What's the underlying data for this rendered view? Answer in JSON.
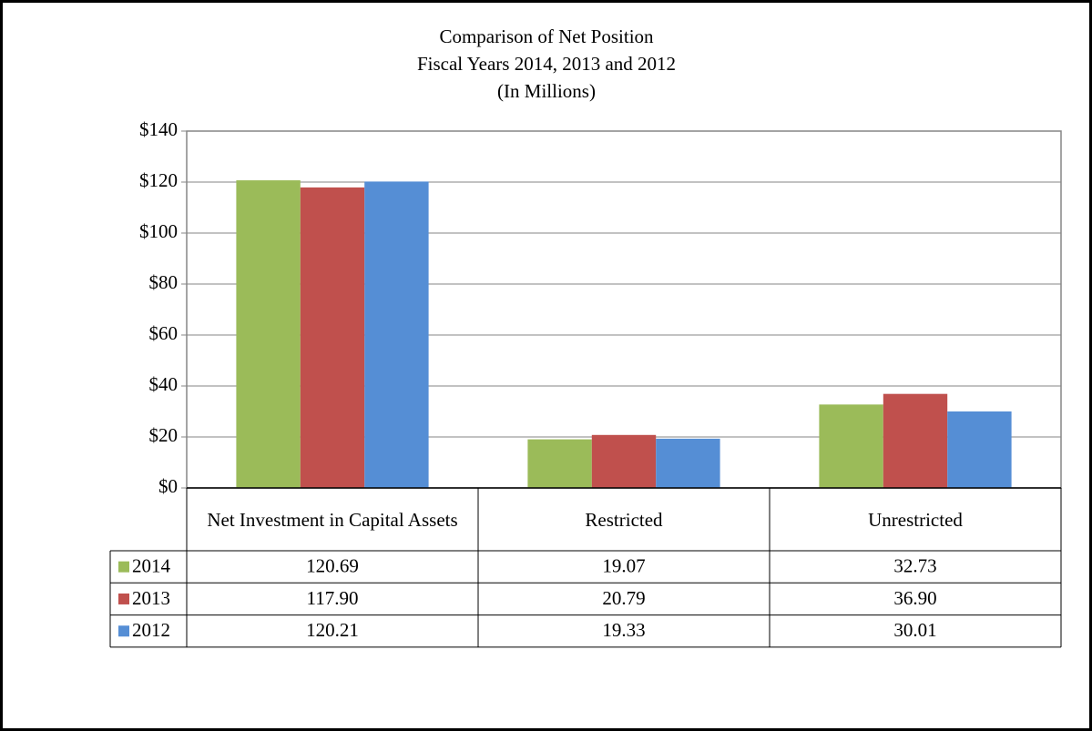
{
  "chart_data": {
    "type": "bar",
    "title": "Comparison of Net Position",
    "subtitle": "Fiscal Years 2014, 2013 and 2012",
    "units_note": "(In Millions)",
    "categories": [
      "Net Investment in Capital Assets",
      "Restricted",
      "Unrestricted"
    ],
    "series": [
      {
        "name": "2014",
        "color": "#9bbb59",
        "values": [
          120.69,
          19.07,
          32.73
        ],
        "value_labels": [
          "120.69",
          "19.07",
          "32.73"
        ]
      },
      {
        "name": "2013",
        "color": "#c0504d",
        "values": [
          117.9,
          20.79,
          36.9
        ],
        "value_labels": [
          "117.90",
          "20.79",
          "36.90"
        ]
      },
      {
        "name": "2012",
        "color": "#558ed5",
        "values": [
          120.21,
          19.33,
          30.01
        ],
        "value_labels": [
          "120.21",
          "19.33",
          "30.01"
        ]
      }
    ],
    "ylim": [
      0,
      140
    ],
    "yticks": [
      {
        "value": 0,
        "label": "$0"
      },
      {
        "value": 20,
        "label": "$20"
      },
      {
        "value": 40,
        "label": "$40"
      },
      {
        "value": 60,
        "label": "$60"
      },
      {
        "value": 80,
        "label": "$80"
      },
      {
        "value": 100,
        "label": "$100"
      },
      {
        "value": 120,
        "label": "$120"
      },
      {
        "value": 140,
        "label": "$140"
      }
    ],
    "grid": true,
    "data_table": true
  }
}
